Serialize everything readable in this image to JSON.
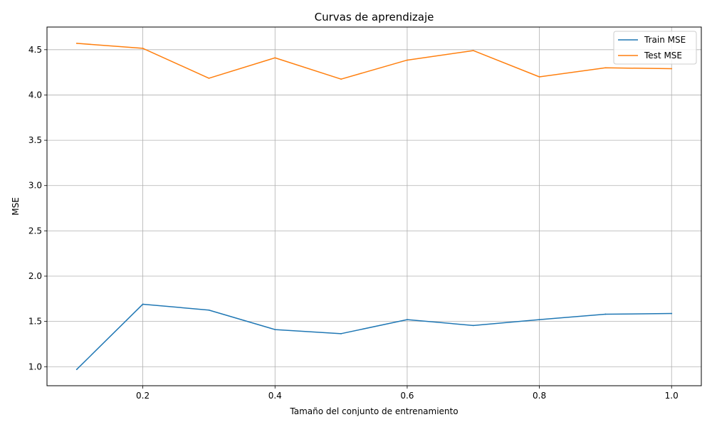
{
  "chart_data": {
    "type": "line",
    "title": "Curvas de aprendizaje",
    "xlabel": "Tamaño del conjunto de entrenamiento",
    "ylabel": "MSE",
    "x": [
      0.1,
      0.2,
      0.3,
      0.4,
      0.5,
      0.6,
      0.7,
      0.8,
      0.9,
      1.0
    ],
    "series": [
      {
        "name": "Train MSE",
        "color": "#1f77b4",
        "values": [
          0.97,
          1.69,
          1.625,
          1.41,
          1.365,
          1.52,
          1.455,
          1.52,
          1.58,
          1.587
        ]
      },
      {
        "name": "Test MSE",
        "color": "#ff7f0e",
        "values": [
          4.57,
          4.515,
          4.185,
          4.41,
          4.175,
          4.385,
          4.49,
          4.2,
          4.3,
          4.29
        ]
      }
    ],
    "xlim": [
      0.055,
      1.045
    ],
    "ylim": [
      0.79,
      4.75
    ],
    "xticks": [
      "0.2",
      "0.4",
      "0.6",
      "0.8",
      "1.0"
    ],
    "yticks": [
      "1.0",
      "1.5",
      "2.0",
      "2.5",
      "3.0",
      "3.5",
      "4.0",
      "4.5"
    ],
    "grid": true,
    "legend_position": "top-right"
  }
}
